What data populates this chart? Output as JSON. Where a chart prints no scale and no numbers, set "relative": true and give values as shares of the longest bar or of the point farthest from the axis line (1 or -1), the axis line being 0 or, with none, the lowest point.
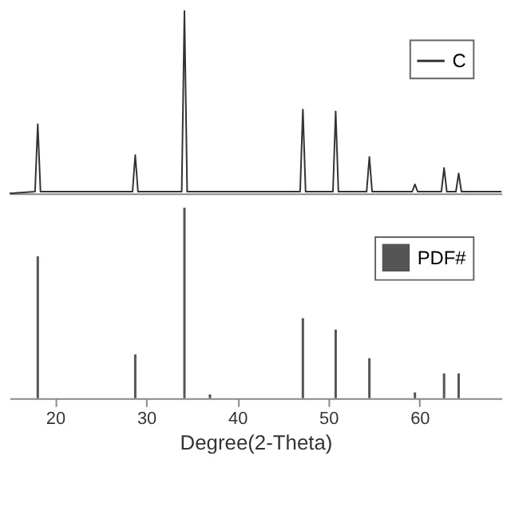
{
  "chart_data": [
    {
      "type": "line",
      "relative": true,
      "xlim": [
        15,
        69
      ],
      "tick_labels": false,
      "legend": "top right",
      "grid": false,
      "series": [
        {
          "name": "C",
          "color": "#333333",
          "x": [
            15,
            17.8,
            18.1,
            18.4,
            28.5,
            28.8,
            29.1,
            33.9,
            34.2,
            34.5,
            46.9,
            47.2,
            47.5,
            50.5,
            50.8,
            51.1,
            54.2,
            54.5,
            54.8,
            59.2,
            59.5,
            59.8,
            62.4,
            62.7,
            63.0,
            64.0,
            64.3,
            64.6,
            69
          ],
          "values": [
            0,
            0.01,
            0.38,
            0.01,
            0.01,
            0.21,
            0.01,
            0.01,
            1,
            0.01,
            0.01,
            0.46,
            0.01,
            0.01,
            0.45,
            0.01,
            0.01,
            0.2,
            0.01,
            0.01,
            0.05,
            0.01,
            0.01,
            0.14,
            0.01,
            0.01,
            0.11,
            0.01,
            0.01
          ]
        }
      ]
    },
    {
      "type": "bar",
      "relative": true,
      "xlim": [
        15,
        69
      ],
      "xticks": [
        20,
        30,
        40,
        50,
        60
      ],
      "xlabel": "Degree(2-Theta)",
      "tick_labels": "x",
      "legend": "top right",
      "grid": false,
      "series": [
        {
          "name": "PDF#",
          "color": "#555555",
          "x": [
            18.1,
            28.8,
            34.2,
            37.0,
            47.2,
            50.8,
            54.5,
            59.5,
            62.7,
            64.3
          ],
          "values": [
            0.745,
            0.23,
            1,
            0.02,
            0.42,
            0.36,
            0.21,
            0.03,
            0.13,
            0.13
          ]
        }
      ]
    }
  ]
}
